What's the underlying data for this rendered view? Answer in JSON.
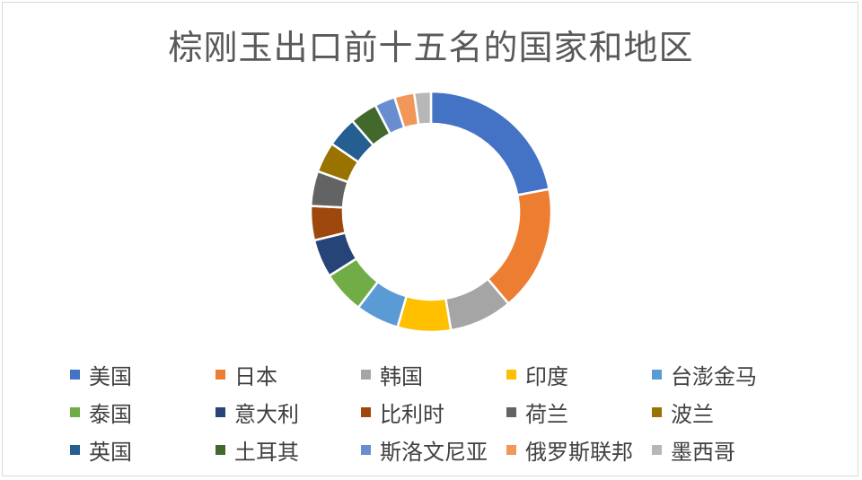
{
  "chart_data": {
    "type": "pie",
    "style": "donut",
    "title": "棕刚玉出口前十五名的国家和地区",
    "legend_position": "bottom",
    "categories": [
      "美国",
      "日本",
      "韩国",
      "印度",
      "台澎金马",
      "泰国",
      "意大利",
      "比利时",
      "荷兰",
      "波兰",
      "英国",
      "土耳其",
      "斯洛文尼亚",
      "俄罗斯联邦",
      "墨西哥"
    ],
    "values": [
      21.5,
      16.5,
      8.3,
      7.0,
      5.7,
      5.6,
      5.0,
      4.5,
      4.6,
      4.0,
      4.0,
      3.6,
      2.7,
      2.6,
      2.2
    ],
    "colors": [
      "#4472C4",
      "#ED7D31",
      "#A5A5A5",
      "#FFC000",
      "#5B9BD5",
      "#70AD47",
      "#264478",
      "#9E480E",
      "#636363",
      "#997300",
      "#255E91",
      "#43682B",
      "#698ED0",
      "#F1975A",
      "#B7B7B7"
    ]
  }
}
